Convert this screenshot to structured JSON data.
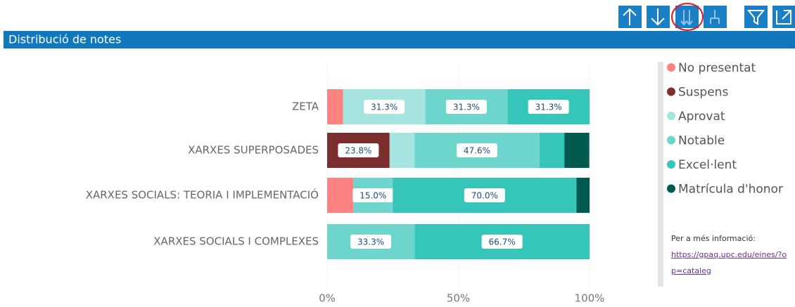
{
  "header": {
    "title": "Distribució de notes"
  },
  "chart_data": {
    "type": "stacked-barh",
    "categories": [
      "ZETA",
      "XARXES SUPERPOSADES",
      "XARXES SOCIALS: TEORIA I IMPLEMENTACIÓ",
      "XARXES SOCIALS I COMPLEXES"
    ],
    "series": [
      {
        "name": "No presentat",
        "color": "#fd8383",
        "values": [
          6.1,
          null,
          10,
          null
        ],
        "value_labels": [
          null,
          null,
          null,
          null
        ]
      },
      {
        "name": "Suspens",
        "color": "#7c2e2e",
        "values": [
          null,
          23.8,
          null,
          null
        ],
        "value_labels": [
          null,
          "23.8%",
          null,
          null
        ]
      },
      {
        "name": "Aprovat",
        "color": "#a6e4df",
        "values": [
          31.3,
          9.5,
          null,
          null
        ],
        "value_labels": [
          "31.3%",
          null,
          null,
          null
        ]
      },
      {
        "name": "Notable",
        "color": "#6dd5cc",
        "values": [
          31.3,
          47.6,
          15.0,
          33.3
        ],
        "value_labels": [
          "31.3%",
          "47.6%",
          "15.0%",
          "33.3%"
        ]
      },
      {
        "name": "Excel·lent",
        "color": "#36c5b9",
        "values": [
          31.3,
          9.5,
          70.0,
          66.7
        ],
        "value_labels": [
          "31.3%",
          null,
          "70.0%",
          "66.7%"
        ]
      },
      {
        "name": "Matrícula d'honor",
        "color": "#005a50",
        "values": [
          null,
          9.5,
          5,
          null
        ],
        "value_labels": [
          null,
          null,
          null,
          null
        ]
      }
    ],
    "xlim": [
      0,
      100
    ],
    "xticks": [
      {
        "value": 0,
        "label": "0%"
      },
      {
        "value": 50,
        "label": "50%"
      },
      {
        "value": 100,
        "label": "100%"
      }
    ],
    "grid": true,
    "legend": "right"
  },
  "info": {
    "text": "Per a més informació:",
    "link": "https://gpaq.upc.edu/eines/?op=cataleg"
  }
}
